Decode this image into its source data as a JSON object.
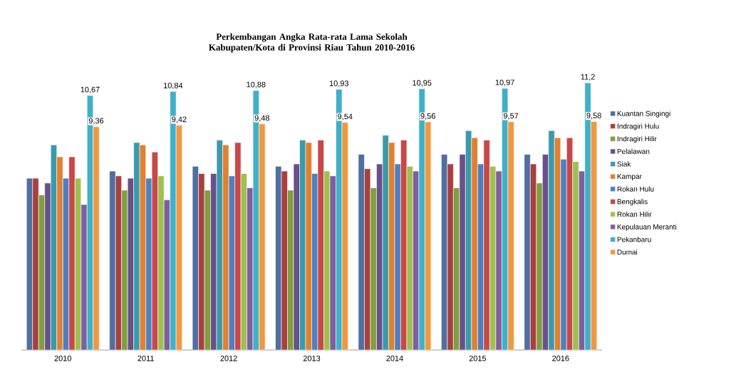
{
  "chart_data": {
    "type": "bar",
    "title": "Perkembangan Angka Rata-rata Lama Sekolah Kabupaten/Kota di Provinsi Riau Tahun 2010-2016",
    "categories": [
      "2010",
      "2011",
      "2012",
      "2013",
      "2014",
      "2015",
      "2016"
    ],
    "legend": "right",
    "series": [
      {
        "name": "Kuantan Singingi",
        "color": "#4f6fa0",
        "values": [
          7.2,
          7.5,
          7.7,
          7.7,
          8.2,
          8.2,
          8.2
        ]
      },
      {
        "name": "Indragiri Hulu",
        "color": "#a84040",
        "values": [
          7.2,
          7.3,
          7.4,
          7.5,
          7.6,
          7.8,
          7.8
        ]
      },
      {
        "name": "Indragiri Hilir",
        "color": "#7f9f3f",
        "values": [
          6.5,
          6.7,
          6.7,
          6.7,
          6.8,
          6.8,
          7.0
        ]
      },
      {
        "name": "Pelalawan",
        "color": "#6a4f8a",
        "values": [
          7.0,
          7.2,
          7.4,
          7.8,
          7.8,
          8.2,
          8.2
        ]
      },
      {
        "name": "Siak",
        "color": "#3a9aaa",
        "values": [
          8.6,
          8.7,
          8.8,
          8.8,
          9.0,
          9.2,
          9.2
        ]
      },
      {
        "name": "Kampar",
        "color": "#e08030",
        "values": [
          8.1,
          8.6,
          8.6,
          8.7,
          8.7,
          8.9,
          8.9
        ]
      },
      {
        "name": "Rokan Hulu",
        "color": "#4f7fbf",
        "values": [
          7.2,
          7.2,
          7.3,
          7.4,
          7.8,
          7.8,
          8.0
        ]
      },
      {
        "name": "Bengkalis",
        "color": "#c84848",
        "values": [
          8.1,
          8.3,
          8.7,
          8.8,
          8.8,
          8.8,
          8.9
        ]
      },
      {
        "name": "Rokan Hilir",
        "color": "#9fc050",
        "values": [
          7.2,
          7.3,
          7.4,
          7.5,
          7.7,
          7.7,
          7.9
        ]
      },
      {
        "name": "Kepulauan Meranti",
        "color": "#7f5f9f",
        "values": [
          6.1,
          6.3,
          6.8,
          7.3,
          7.5,
          7.5,
          7.5
        ]
      },
      {
        "name": "Pekanbaru",
        "color": "#40b0c8",
        "values": [
          10.67,
          10.84,
          10.88,
          10.93,
          10.95,
          10.97,
          11.2
        ],
        "value_labels": [
          "10,67",
          "10,84",
          "10,88",
          "10,93",
          "10,95",
          "10,97",
          "11,2"
        ]
      },
      {
        "name": "Dumai",
        "color": "#f09840",
        "values": [
          9.36,
          9.42,
          9.48,
          9.54,
          9.56,
          9.57,
          9.58
        ],
        "value_labels": [
          "9,36",
          "9,42",
          "9,48",
          "9,54",
          "9,56",
          "9,57",
          "9,58"
        ]
      }
    ]
  }
}
